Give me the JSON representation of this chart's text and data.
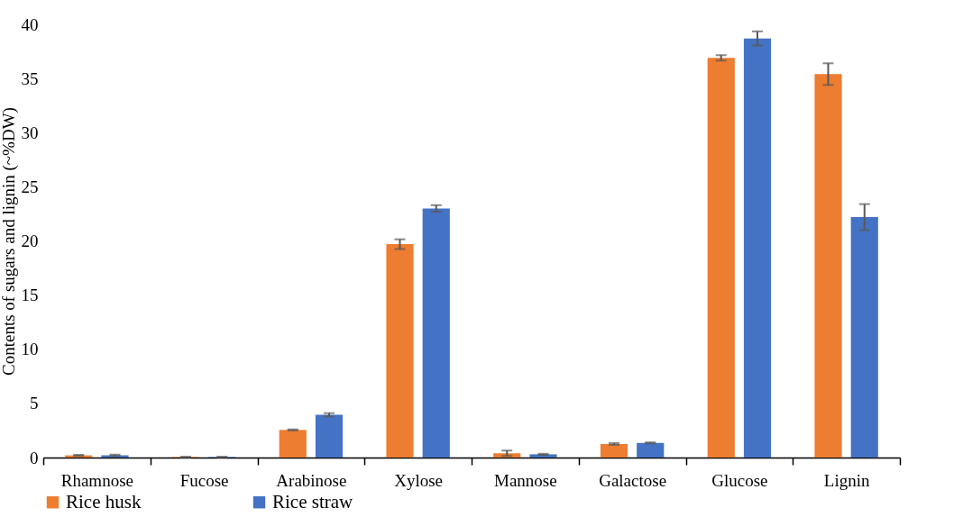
{
  "chart_data": {
    "type": "bar",
    "ylabel": "Contents of sugars and lignin (~%DW)",
    "categories": [
      "Rhamnose",
      "Fucose",
      "Arabinose",
      "Xylose",
      "Mannose",
      "Galactose",
      "Glucose",
      "Lignin"
    ],
    "series": [
      {
        "name": "Rice husk",
        "color": "#ed7d31",
        "values": [
          0.2,
          0.05,
          2.55,
          19.7,
          0.4,
          1.25,
          36.9,
          35.4
        ],
        "errors": [
          0.05,
          0.02,
          0.05,
          0.45,
          0.25,
          0.08,
          0.25,
          1.0
        ]
      },
      {
        "name": "Rice straw",
        "color": "#4472c4",
        "values": [
          0.2,
          0.05,
          3.95,
          23.0,
          0.3,
          1.35,
          38.7,
          22.2
        ],
        "errors": [
          0.07,
          0.02,
          0.15,
          0.3,
          0.05,
          0.05,
          0.65,
          1.2
        ]
      }
    ],
    "ylim": [
      0,
      40
    ],
    "yticks": [
      0,
      5,
      10,
      15,
      20,
      25,
      30,
      35,
      40
    ],
    "grid": false,
    "legend": "bottom"
  }
}
